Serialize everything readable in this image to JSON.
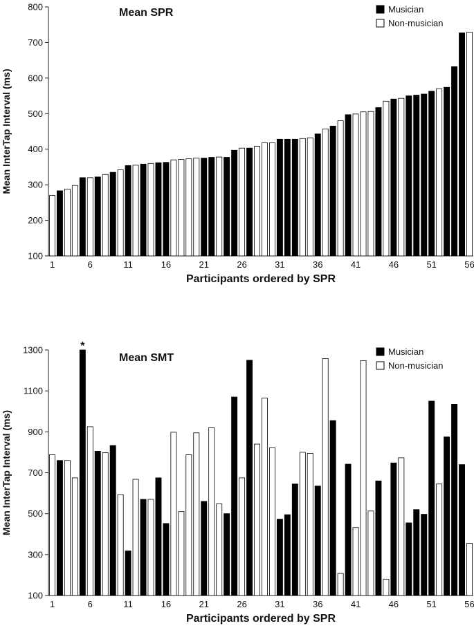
{
  "chart_data": [
    {
      "type": "bar",
      "title": "Mean SPR",
      "xlabel": "Participants ordered by SPR",
      "ylabel": "Mean InterTap Interval (ms)",
      "ylim": [
        100,
        800
      ],
      "yticks": [
        100,
        200,
        300,
        400,
        500,
        600,
        700,
        800
      ],
      "xtick_labels": [
        "1",
        "6",
        "11",
        "16",
        "21",
        "26",
        "31",
        "36",
        "41",
        "46",
        "51",
        "56"
      ],
      "legend": {
        "position": "top-right",
        "musician": "Musician",
        "non_musician": "Non-musician"
      },
      "groups": [
        "N",
        "M",
        "N",
        "N",
        "M",
        "N",
        "M",
        "N",
        "M",
        "N",
        "M",
        "N",
        "M",
        "N",
        "M",
        "M",
        "N",
        "N",
        "N",
        "N",
        "M",
        "M",
        "N",
        "M",
        "M",
        "N",
        "M",
        "N",
        "N",
        "N",
        "M",
        "M",
        "M",
        "N",
        "N",
        "M",
        "N",
        "M",
        "N",
        "M",
        "N",
        "N",
        "N",
        "M",
        "N",
        "M",
        "N",
        "M",
        "M",
        "M",
        "M",
        "N",
        "M",
        "M",
        "M",
        "N"
      ],
      "values": [
        270,
        283,
        288,
        298,
        320,
        320,
        322,
        329,
        335,
        342,
        354,
        355,
        358,
        360,
        362,
        363,
        370,
        371,
        373,
        375,
        375,
        377,
        378,
        377,
        397,
        403,
        403,
        408,
        418,
        418,
        428,
        428,
        428,
        430,
        432,
        443,
        457,
        465,
        480,
        497,
        499,
        505,
        506,
        517,
        535,
        541,
        543,
        550,
        552,
        555,
        563,
        570,
        574,
        632,
        727,
        729
      ]
    },
    {
      "type": "bar",
      "title": "Mean SMT",
      "xlabel": "Participants ordered by SPR",
      "ylabel": "Mean InterTap Interval (ms)",
      "ylim": [
        100,
        1300
      ],
      "yticks": [
        100,
        300,
        500,
        700,
        900,
        1100,
        1300
      ],
      "xtick_labels": [
        "1",
        "6",
        "11",
        "16",
        "21",
        "26",
        "31",
        "36",
        "41",
        "46",
        "51",
        "56"
      ],
      "legend": {
        "position": "top-right",
        "musician": "Musician",
        "non_musician": "Non-musician"
      },
      "annotation": "*",
      "groups": [
        "N",
        "M",
        "N",
        "N",
        "M",
        "N",
        "M",
        "N",
        "M",
        "N",
        "M",
        "N",
        "M",
        "N",
        "M",
        "M",
        "N",
        "N",
        "N",
        "N",
        "M",
        "N",
        "N",
        "M",
        "M",
        "N",
        "M",
        "N",
        "N",
        "N",
        "M",
        "M",
        "M",
        "N",
        "N",
        "M",
        "N",
        "M",
        "N",
        "M",
        "N",
        "N",
        "N",
        "M",
        "N",
        "M",
        "N",
        "M",
        "M",
        "M",
        "M",
        "N",
        "M",
        "M",
        "M",
        "N"
      ],
      "values": [
        788,
        760,
        760,
        675,
        1300,
        925,
        805,
        798,
        833,
        593,
        318,
        668,
        570,
        570,
        675,
        452,
        898,
        510,
        788,
        895,
        560,
        920,
        548,
        500,
        1070,
        675,
        1250,
        840,
        1065,
        822,
        473,
        495,
        645,
        800,
        795,
        635,
        1258,
        955,
        208,
        742,
        432,
        1248,
        513,
        660,
        180,
        748,
        773,
        455,
        520,
        497,
        1050,
        645,
        875,
        1035,
        740,
        355
      ]
    }
  ]
}
